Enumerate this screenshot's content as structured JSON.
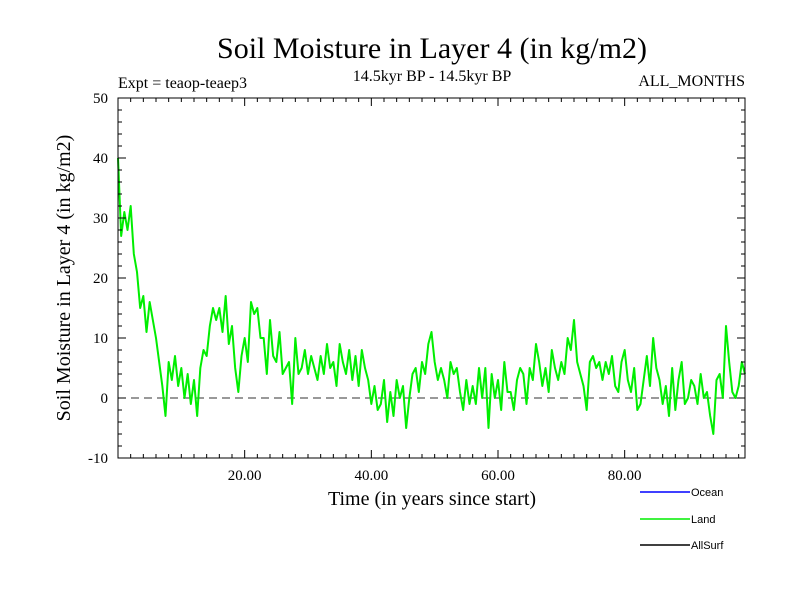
{
  "chart_data": {
    "type": "line",
    "title": "Soil Moisture in Layer 4 (in kg/m2)",
    "subtitle_left": "Expt = teaop-teaep3",
    "subtitle_center": "14.5kyr BP - 14.5kyr BP",
    "subtitle_right": "ALL_MONTHS",
    "xlabel": "Time (in years since start)",
    "ylabel": "Soil Moisture in Layer 4 (in kg/m2)",
    "xlim": [
      0,
      99
    ],
    "ylim": [
      -10,
      50
    ],
    "x_ticks": [
      20,
      40,
      60,
      80
    ],
    "x_tick_labels": [
      "20.00",
      "40.00",
      "60.00",
      "80.00"
    ],
    "y_ticks": [
      -10,
      0,
      10,
      20,
      30,
      40,
      50
    ],
    "y_tick_labels": [
      "-10",
      "0",
      "10",
      "20",
      "30",
      "40",
      "50"
    ],
    "zero_line": 0,
    "legend": [
      {
        "name": "Ocean",
        "color": "#0000ff"
      },
      {
        "name": "Land",
        "color": "#00ee00"
      },
      {
        "name": "AllSurf",
        "color": "#000000"
      }
    ],
    "series": [
      {
        "name": "Land",
        "color": "#00ee00",
        "x": [
          0,
          0.5,
          1,
          1.5,
          2,
          2.5,
          3,
          3.5,
          4,
          4.5,
          5,
          5.5,
          6,
          6.5,
          7,
          7.5,
          8,
          8.5,
          9,
          9.5,
          10,
          10.5,
          11,
          11.5,
          12,
          12.5,
          13,
          13.5,
          14,
          14.5,
          15,
          15.5,
          16,
          16.5,
          17,
          17.5,
          18,
          18.5,
          19,
          19.5,
          20,
          20.5,
          21,
          21.5,
          22,
          22.5,
          23,
          23.5,
          24,
          24.5,
          25,
          25.5,
          26,
          26.5,
          27,
          27.5,
          28,
          28.5,
          29,
          29.5,
          30,
          30.5,
          31,
          31.5,
          32,
          32.5,
          33,
          33.5,
          34,
          34.5,
          35,
          35.5,
          36,
          36.5,
          37,
          37.5,
          38,
          38.5,
          39,
          39.5,
          40,
          40.5,
          41,
          41.5,
          42,
          42.5,
          43,
          43.5,
          44,
          44.5,
          45,
          45.5,
          46,
          46.5,
          47,
          47.5,
          48,
          48.5,
          49,
          49.5,
          50,
          50.5,
          51,
          51.5,
          52,
          52.5,
          53,
          53.5,
          54,
          54.5,
          55,
          55.5,
          56,
          56.5,
          57,
          57.5,
          58,
          58.5,
          59,
          59.5,
          60,
          60.5,
          61,
          61.5,
          62,
          62.5,
          63,
          63.5,
          64,
          64.5,
          65,
          65.5,
          66,
          66.5,
          67,
          67.5,
          68,
          68.5,
          69,
          69.5,
          70,
          70.5,
          71,
          71.5,
          72,
          72.5,
          73,
          73.5,
          74,
          74.5,
          75,
          75.5,
          76,
          76.5,
          77,
          77.5,
          78,
          78.5,
          79,
          79.5,
          80,
          80.5,
          81,
          81.5,
          82,
          82.5,
          83,
          83.5,
          84,
          84.5,
          85,
          85.5,
          86,
          86.5,
          87,
          87.5,
          88,
          88.5,
          89,
          89.5,
          90,
          90.5,
          91,
          91.5,
          92,
          92.5,
          93,
          93.5,
          94,
          94.5,
          95,
          95.5,
          96,
          96.5,
          97,
          97.5,
          98,
          98.5,
          99
        ],
        "values": [
          40,
          27,
          31,
          28,
          32,
          24,
          21,
          15,
          17,
          11,
          16,
          13,
          10,
          6,
          2,
          -3,
          6,
          3,
          7,
          2,
          5,
          0,
          4,
          -1,
          3,
          -3,
          5,
          8,
          7,
          12,
          15,
          13,
          15,
          11,
          17,
          9,
          12,
          5,
          1,
          7,
          10,
          6,
          16,
          14,
          15,
          10,
          10,
          4,
          13,
          7,
          6,
          11,
          4,
          5,
          6,
          -1,
          10,
          4,
          5,
          8,
          4,
          7,
          5,
          3,
          7,
          4,
          9,
          5,
          6,
          2,
          9,
          6,
          4,
          8,
          3,
          7,
          2,
          8,
          5,
          3,
          -1,
          2,
          -2,
          -1,
          3,
          -4,
          1,
          -3,
          3,
          0,
          2,
          -5,
          0,
          4,
          5,
          1,
          6,
          4,
          9,
          11,
          6,
          3,
          5,
          3,
          0,
          6,
          4,
          5,
          1,
          -2,
          3,
          -1,
          2,
          -1,
          5,
          0,
          5,
          -5,
          4,
          0,
          3,
          -2,
          6,
          1,
          1,
          -2,
          3,
          5,
          4,
          -1,
          5,
          3,
          9,
          6,
          2,
          5,
          1,
          8,
          5,
          3,
          6,
          4,
          10,
          8,
          13,
          6,
          4,
          2,
          -2,
          6,
          7,
          5,
          6,
          3,
          6,
          4,
          7,
          2,
          1,
          6,
          8,
          3,
          1,
          5,
          -2,
          -1,
          3,
          7,
          2,
          10,
          5,
          3,
          -1,
          2,
          -3,
          5,
          -2,
          3,
          6,
          -1,
          0,
          3,
          2,
          -1,
          4,
          0,
          1,
          -3,
          -6,
          3,
          4,
          0,
          12,
          6,
          1,
          0,
          2,
          6,
          4
        ]
      }
    ]
  }
}
